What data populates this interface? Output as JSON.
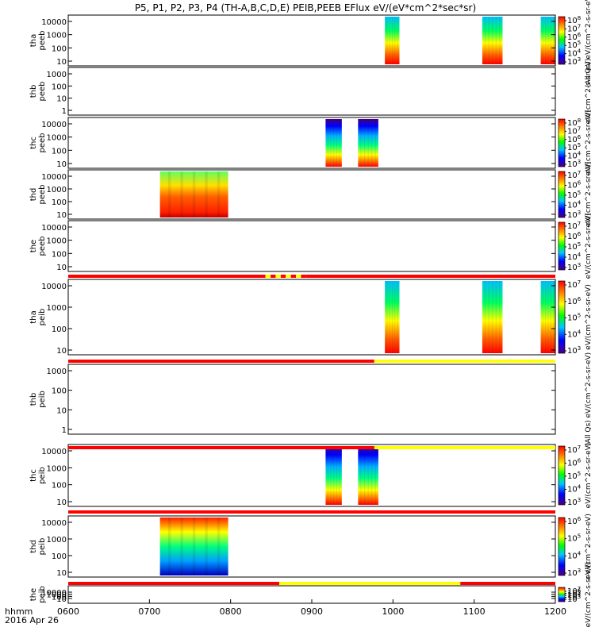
{
  "chart_data": {
    "type": "heatmap",
    "title": "P5, P1, P2, P3, P4 (TH-A,B,C,D,E) PEIB,PEEB EFlux eV/(eV*cm^2*sec*sr)",
    "x_ticks": [
      "0600",
      "0700",
      "0800",
      "0900",
      "1000",
      "1100",
      "1200"
    ],
    "x_range_hours": [
      6.0,
      12.0
    ],
    "xlabel_line1": "hhmm",
    "xlabel_line2": "2016 Apr 26",
    "energy_ticks_std": [
      "10000",
      "1000",
      "100",
      "10"
    ],
    "energy_ticks_thb": [
      "1000",
      "100",
      "10",
      "1"
    ],
    "colorbar_label": "eV/(cm^2-s-sr-eV)",
    "panels": [
      {
        "probe": "tha",
        "type": "peeb",
        "label1": "tha",
        "label2": "peeb",
        "ticks": "std",
        "colorbar_ticks": [
          "10^8",
          "10^7",
          "10^6",
          "10^5",
          "10^4",
          "10^3"
        ],
        "colorbar_unit": "(All Qs) eV/(cm^2-s-sr-eV)",
        "blocks": [
          {
            "start": 9.9,
            "end": 10.08,
            "style": "mixed"
          },
          {
            "start": 11.1,
            "end": 11.35,
            "style": "mixed"
          },
          {
            "start": 11.82,
            "end": 12.0,
            "style": "mixed"
          }
        ]
      },
      {
        "probe": "thb",
        "type": "peeb",
        "label1": "thb",
        "label2": "peeb",
        "ticks": "thb",
        "colorbar_ticks": [],
        "colorbar_unit": "eV/(cm^2-s-sr-eV)",
        "blocks": []
      },
      {
        "probe": "thc",
        "type": "peeb",
        "label1": "thc",
        "label2": "peeb",
        "ticks": "std",
        "colorbar_ticks": [
          "10^8",
          "10^7",
          "10^6",
          "10^5",
          "10^4",
          "10^3"
        ],
        "colorbar_unit": "eV/(cm^2-s-sr-eV)",
        "blocks": [
          {
            "start": 9.17,
            "end": 9.37,
            "style": "band"
          },
          {
            "start": 9.57,
            "end": 9.82,
            "style": "band"
          }
        ]
      },
      {
        "probe": "thd",
        "type": "peeb",
        "label1": "thd",
        "label2": "peeb",
        "ticks": "std",
        "colorbar_ticks": [
          "10^7",
          "10^6",
          "10^5",
          "10^4",
          "10^3"
        ],
        "colorbar_unit": "eV/(cm^2-s-sr-eV)",
        "blocks": [
          {
            "start": 7.13,
            "end": 7.97,
            "style": "warm"
          }
        ]
      },
      {
        "probe": "the",
        "type": "peeb",
        "label1": "the",
        "label2": "peeb",
        "ticks": "std",
        "colorbar_ticks": [
          "10^7",
          "10^6",
          "10^5",
          "10^4",
          "10^3"
        ],
        "colorbar_unit": "eV/(cm^2-s-sr-eV)",
        "blocks": []
      },
      {
        "probe": "tha",
        "type": "peib",
        "label1": "tha",
        "label2": "peib",
        "ticks": "std",
        "colorbar_ticks": [
          "10^7",
          "10^6",
          "10^5",
          "10^4",
          "10^3"
        ],
        "colorbar_unit": "eV/(cm^2-s-sr-eV)",
        "blocks": [
          {
            "start": 9.9,
            "end": 10.08,
            "style": "mixed"
          },
          {
            "start": 11.1,
            "end": 11.35,
            "style": "mixed"
          },
          {
            "start": 11.82,
            "end": 12.0,
            "style": "mixed"
          }
        ]
      },
      {
        "probe": "thb",
        "type": "peib",
        "label1": "thb",
        "label2": "peib",
        "ticks": "thb",
        "colorbar_ticks": [],
        "colorbar_unit": "(All Qs) eV/(cm^2-s-sr-eV)",
        "blocks": []
      },
      {
        "probe": "thc",
        "type": "peib",
        "label1": "thc",
        "label2": "peib",
        "ticks": "std",
        "colorbar_ticks": [
          "10^7",
          "10^6",
          "10^5",
          "10^4",
          "10^3"
        ],
        "colorbar_unit": "eV/(cm^2-s-sr-eV)",
        "blocks": [
          {
            "start": 9.17,
            "end": 9.37,
            "style": "band"
          },
          {
            "start": 9.57,
            "end": 9.82,
            "style": "band"
          }
        ]
      },
      {
        "probe": "thd",
        "type": "peib",
        "label1": "thd",
        "label2": "peib",
        "ticks": "std",
        "colorbar_ticks": [
          "10^6",
          "10^5",
          "10^4",
          "10^3"
        ],
        "colorbar_unit": "eV/(cm^2-s-sr-eV)",
        "blocks": [
          {
            "start": 7.13,
            "end": 7.97,
            "style": "cool"
          }
        ]
      },
      {
        "probe": "the",
        "type": "peib",
        "label1": "the",
        "label2": "peib",
        "ticks": "std",
        "colorbar_ticks": [
          "10^7",
          "10^6",
          "10^5",
          "10^4",
          "10^3"
        ],
        "colorbar_unit": "eV/(cm^2-s-sr-eV)",
        "blocks": []
      }
    ],
    "status_bars": [
      {
        "after_panel": 4,
        "segments": [
          {
            "start": 6.0,
            "end": 8.43,
            "color": "#ff0000"
          },
          {
            "start": 8.43,
            "end": 8.93,
            "color": "mixed"
          },
          {
            "start": 8.93,
            "end": 12.0,
            "color": "#ff0000"
          }
        ]
      },
      {
        "after_panel": 5,
        "segments": [
          {
            "start": 6.0,
            "end": 9.77,
            "color": "#ff0000"
          },
          {
            "start": 9.77,
            "end": 12.0,
            "color": "#ffff00"
          }
        ]
      },
      {
        "after_panel": 6,
        "segments": [
          {
            "start": 6.0,
            "end": 9.77,
            "color": "#ff0000"
          },
          {
            "start": 9.77,
            "end": 12.0,
            "color": "#ffff00"
          }
        ]
      },
      {
        "after_panel": 7,
        "segments": [
          {
            "start": 6.0,
            "end": 12.0,
            "color": "#ff0000"
          }
        ]
      },
      {
        "after_panel": 8,
        "segments": [
          {
            "start": 6.0,
            "end": 8.6,
            "color": "#ff0000"
          },
          {
            "start": 8.6,
            "end": 10.83,
            "color": "#ffff00"
          },
          {
            "start": 10.83,
            "end": 12.0,
            "color": "#ff0000"
          }
        ]
      }
    ]
  }
}
